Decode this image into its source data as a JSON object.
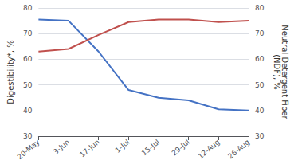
{
  "chart_data": {
    "type": "line",
    "categories": [
      "20-May",
      "3-Jun",
      "17-Jun",
      "1-Jul",
      "15-Jul",
      "29-Jul",
      "12-Aug",
      "26-Aug"
    ],
    "series": [
      {
        "color": "#4472C4",
        "values": [
          75.5,
          75.0,
          63.0,
          48.0,
          45.0,
          44.0,
          40.5,
          40.0
        ]
      },
      {
        "color": "#C0504D",
        "values": [
          63.0,
          64.0,
          69.5,
          74.5,
          75.5,
          75.5,
          74.5,
          75.0
        ],
        "axis": "y2"
      }
    ],
    "ylabel": "Digestibility*, %",
    "y2label": "Neutral Detergent Fiber\n(NDF), %",
    "ylim": [
      30,
      80
    ],
    "yticks": [
      30,
      40,
      50,
      60,
      70,
      80
    ],
    "y2lim": [
      30,
      80
    ],
    "y2ticks": [
      30,
      40,
      50,
      60,
      70,
      80
    ],
    "grid": true
  }
}
